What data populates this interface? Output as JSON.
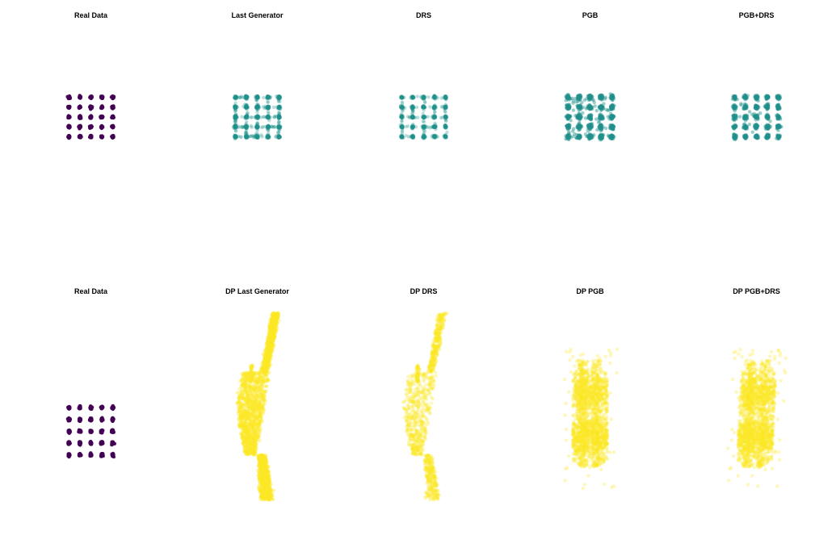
{
  "figure": {
    "layout": "2 rows x 5 columns of scatter plots, no axes",
    "colors": {
      "real": "#440154",
      "generated": "#21918c",
      "dp_generated": "#fde725"
    }
  },
  "chart_data": [
    {
      "type": "scatter",
      "row": 1,
      "col": 1,
      "title": "Real Data",
      "color": "#440154",
      "style": "grid",
      "grid": {
        "xs": [
          0,
          1,
          2,
          3,
          4
        ],
        "ys": [
          0,
          1,
          2,
          3,
          4
        ],
        "samples_per_point": 40,
        "spread": 0.04
      },
      "opacity": 0.9,
      "xlim": [
        -4.1,
        8.1
      ],
      "ylim": [
        -6.6,
        10.6
      ]
    },
    {
      "type": "scatter",
      "row": 1,
      "col": 2,
      "title": "Last Generator",
      "color": "#21918c",
      "style": "grid_lines",
      "grid": {
        "xs": [
          0,
          1,
          2,
          3,
          4
        ],
        "ys": [
          0,
          1,
          2,
          3,
          4
        ],
        "samples_per_point": 40,
        "line_samples": 120,
        "spread": 0.05
      },
      "opacity": 0.3,
      "xlim": [
        -4.1,
        8.1
      ],
      "ylim": [
        -6.6,
        10.6
      ]
    },
    {
      "type": "scatter",
      "row": 1,
      "col": 3,
      "title": "DRS",
      "color": "#21918c",
      "style": "grid_lines",
      "grid": {
        "xs": [
          0,
          1,
          2,
          3,
          4
        ],
        "ys": [
          0,
          1,
          2,
          3,
          4
        ],
        "samples_per_point": 30,
        "line_samples": 70,
        "spread": 0.05
      },
      "opacity": 0.3,
      "xlim": [
        -4.1,
        8.1
      ],
      "ylim": [
        -6.6,
        10.6
      ]
    },
    {
      "type": "scatter",
      "row": 1,
      "col": 4,
      "title": "PGB",
      "color": "#21918c",
      "style": "grid",
      "grid": {
        "xs": [
          0,
          1,
          2,
          3,
          4
        ],
        "ys": [
          0,
          1,
          2,
          3,
          4
        ],
        "samples_per_point": 40,
        "spread": 0.09,
        "noise_points": 60
      },
      "opacity": 0.45,
      "xlim": [
        -4.1,
        8.1
      ],
      "ylim": [
        -6.6,
        10.6
      ]
    },
    {
      "type": "scatter",
      "row": 1,
      "col": 5,
      "title": "PGB+DRS",
      "color": "#21918c",
      "style": "grid",
      "grid": {
        "xs": [
          0,
          1,
          2,
          3,
          4
        ],
        "ys": [
          0,
          1,
          2,
          3,
          4
        ],
        "samples_per_point": 35,
        "spread": 0.08,
        "noise_points": 25
      },
      "opacity": 0.45,
      "xlim": [
        -4.1,
        8.1
      ],
      "ylim": [
        -6.6,
        10.6
      ]
    },
    {
      "type": "scatter",
      "row": 2,
      "col": 1,
      "title": "Real Data",
      "color": "#440154",
      "style": "grid",
      "grid": {
        "xs": [
          0,
          1,
          2,
          3,
          4
        ],
        "ys": [
          0,
          1,
          2,
          3,
          4
        ],
        "samples_per_point": 40,
        "spread": 0.04
      },
      "opacity": 0.9,
      "xlim": [
        -4.1,
        8.1
      ],
      "ylim": [
        -5.2,
        12.4
      ]
    },
    {
      "type": "scatter",
      "row": 2,
      "col": 2,
      "title": "DP Last Generator",
      "color": "#fde725",
      "style": "dp_manifold",
      "opacity": 0.35,
      "xlim": [
        -4.1,
        8.1
      ],
      "ylim": [
        -5.2,
        12.4
      ]
    },
    {
      "type": "scatter",
      "row": 2,
      "col": 3,
      "title": "DP DRS",
      "color": "#fde725",
      "style": "dp_manifold_sparse",
      "opacity": 0.3,
      "xlim": [
        -4.1,
        8.1
      ],
      "ylim": [
        -5.2,
        12.4
      ]
    },
    {
      "type": "scatter",
      "row": 2,
      "col": 4,
      "title": "DP PGB",
      "color": "#fde725",
      "style": "dp_cloud",
      "opacity": 0.3,
      "xlim": [
        -4.1,
        8.1
      ],
      "ylim": [
        -5.2,
        12.4
      ]
    },
    {
      "type": "scatter",
      "row": 2,
      "col": 5,
      "title": "DP PGB+DRS",
      "color": "#fde725",
      "style": "dp_cloud2",
      "opacity": 0.3,
      "xlim": [
        -4.1,
        8.1
      ],
      "ylim": [
        -5.2,
        12.4
      ]
    }
  ]
}
